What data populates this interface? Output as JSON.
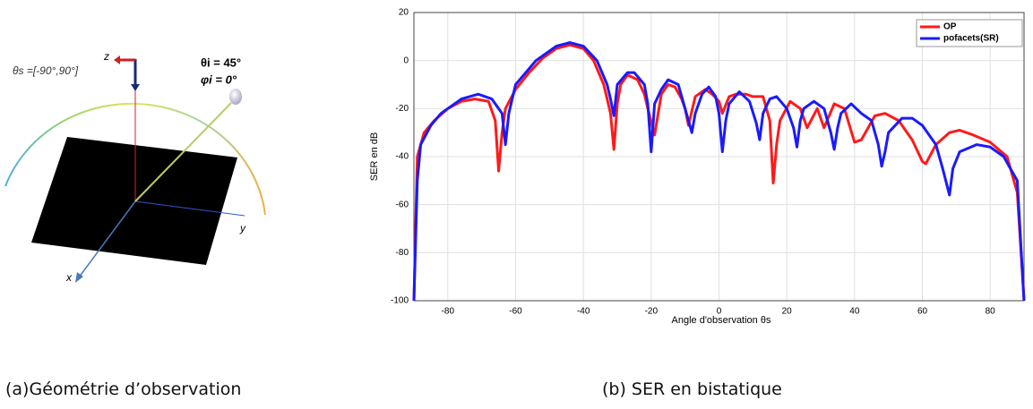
{
  "diagram": {
    "theta_s_label": "θs =[-90°,90°]",
    "z_label": "z",
    "y_label": "y",
    "x_label": "x",
    "theta_i_label": "θi = 45°",
    "phi_i_label": "φi = 0°"
  },
  "captions": {
    "left": "(a)Géométrie d’observation",
    "right": "(b)  SER en bistatique"
  },
  "chart_data": {
    "type": "line",
    "xlabel": "Angle d'observation θs",
    "ylabel": "SER en dB",
    "xlim": [
      -90,
      90
    ],
    "ylim": [
      -100,
      20
    ],
    "xticks": [
      -80,
      -60,
      -40,
      -20,
      0,
      20,
      40,
      60,
      80
    ],
    "yticks": [
      -100,
      -80,
      -60,
      -40,
      -20,
      0,
      20
    ],
    "grid": true,
    "legend": "upper right",
    "series": [
      {
        "name": "OP",
        "color": "#ff1a1a",
        "x": [
          -90,
          -89,
          -87,
          -84,
          -80,
          -76,
          -72,
          -68,
          -66,
          -65,
          -64,
          -63,
          -60,
          -56,
          -52,
          -48,
          -44,
          -40,
          -37,
          -34,
          -32,
          -31,
          -30,
          -29,
          -27,
          -24,
          -22,
          -21,
          -19,
          -17,
          -15,
          -13,
          -11,
          -10,
          -9,
          -7,
          -4,
          -2,
          0,
          1,
          3,
          5,
          8,
          10,
          13,
          15,
          16,
          17,
          18,
          21,
          24,
          26,
          29,
          31,
          34,
          37,
          40,
          42,
          46,
          49,
          53,
          57,
          60,
          61,
          64,
          68,
          71,
          75,
          80,
          85,
          88,
          90
        ],
        "values": [
          -100,
          -40,
          -30,
          -25,
          -20,
          -17,
          -16,
          -17,
          -25,
          -46,
          -30,
          -20,
          -12,
          -5,
          1,
          5,
          6.5,
          5,
          0,
          -10,
          -22,
          -37,
          -18,
          -10,
          -6,
          -8,
          -14,
          -20,
          -31,
          -14,
          -10,
          -11,
          -16,
          -20,
          -27,
          -15,
          -12,
          -14,
          -17,
          -22,
          -15,
          -14,
          -14,
          -15,
          -15,
          -25,
          -51,
          -35,
          -25,
          -17,
          -20,
          -28,
          -20,
          -28,
          -18,
          -20,
          -34,
          -33,
          -23,
          -22,
          -25,
          -33,
          -42,
          -43,
          -35,
          -30,
          -29,
          -31,
          -34,
          -40,
          -55,
          -100
        ]
      },
      {
        "name": "pofacets(SR)",
        "color": "#1a1aff",
        "x": [
          -90,
          -89,
          -88,
          -85,
          -82,
          -76,
          -71,
          -67,
          -64,
          -63,
          -62,
          -60,
          -54,
          -48,
          -44,
          -40,
          -36,
          -33,
          -32,
          -31,
          -30,
          -27,
          -25,
          -22,
          -21,
          -20,
          -19,
          -17,
          -15,
          -12,
          -10,
          -8,
          -7,
          -5,
          -3,
          -1,
          0,
          1,
          2,
          3,
          6,
          9,
          11,
          12,
          13,
          15,
          17,
          20,
          22,
          23,
          24,
          25,
          28,
          31,
          33,
          34,
          35,
          36,
          39,
          42,
          45,
          47,
          48,
          49,
          50,
          54,
          57,
          60,
          64,
          66,
          68,
          69,
          71,
          76,
          80,
          84,
          88,
          90
        ],
        "values": [
          -100,
          -50,
          -35,
          -27,
          -22,
          -16,
          -14,
          -16,
          -22,
          -35,
          -22,
          -10,
          0,
          6,
          7.5,
          6,
          0,
          -10,
          -16,
          -23,
          -10,
          -5,
          -5,
          -10,
          -18,
          -38,
          -18,
          -12,
          -8,
          -10,
          -20,
          -30,
          -22,
          -14,
          -11,
          -15,
          -22,
          -38,
          -25,
          -18,
          -13,
          -17,
          -26,
          -33,
          -22,
          -16,
          -15,
          -20,
          -28,
          -36,
          -25,
          -20,
          -17,
          -20,
          -30,
          -37,
          -28,
          -22,
          -18,
          -22,
          -25,
          -35,
          -44,
          -38,
          -30,
          -24,
          -24,
          -27,
          -35,
          -45,
          -56,
          -45,
          -38,
          -35,
          -36,
          -40,
          -50,
          -100
        ]
      }
    ]
  }
}
